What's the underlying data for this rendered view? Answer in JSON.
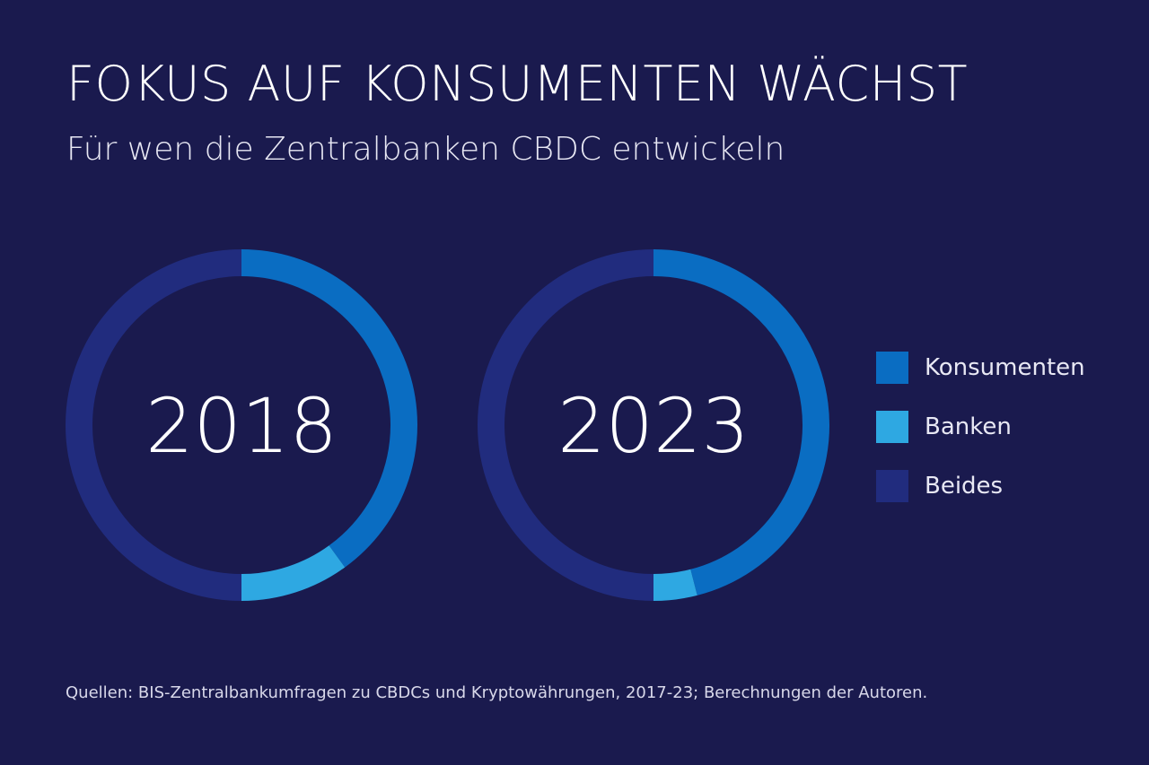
{
  "title": "FOKUS AUF KONSUMENTEN WÄCHST",
  "subtitle": "Für wen die Zentralbanken CBDC entwickeln",
  "source": "Quellen: BIS-Zentralbankumfragen zu CBDCs und Kryptowährungen, 2017-23; Berechnungen der Autoren.",
  "colors": {
    "background": "#1a1a4e",
    "konsumenten": "#0a6dc2",
    "banken": "#2ea8e2",
    "beides": "#212c7e"
  },
  "chart_data": {
    "type": "pie",
    "variant": "donut",
    "legend_position": "right",
    "categories": [
      "Konsumenten",
      "Banken",
      "Beides"
    ],
    "charts": [
      {
        "label": "2018",
        "values": [
          40,
          10,
          50
        ]
      },
      {
        "label": "2023",
        "values": [
          46,
          4,
          50
        ]
      }
    ]
  }
}
